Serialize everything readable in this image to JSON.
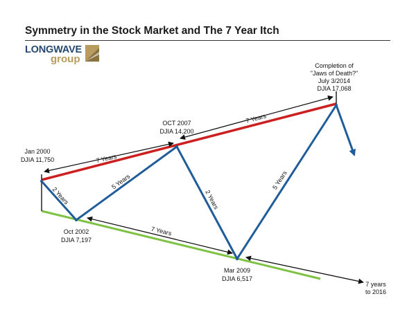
{
  "title": "Symmetry in the Stock Market and The 7 Year Itch",
  "logo": {
    "top": "LONGWAVE",
    "bottom": "group"
  },
  "chart_data": {
    "type": "line",
    "title": "Symmetry in the Stock Market and The 7 Year Itch",
    "series": [
      {
        "points": [
          {
            "date": "Jan 2000",
            "value": 11750
          },
          {
            "date": "Oct 2002",
            "value": 7197
          },
          {
            "date": "Oct 2007",
            "value": 14200
          },
          {
            "date": "Mar 2009",
            "value": 6517
          },
          {
            "date": "July 3/2014",
            "value": 17068
          }
        ],
        "projection": "down after July 3/2014",
        "color": "#1f5c99"
      }
    ],
    "trendlines": [
      {
        "type": "upper",
        "color": "#cc1f1f"
      },
      {
        "type": "lower",
        "color": "#7dc242"
      }
    ],
    "annotations": {
      "jan2000": [
        "Jan 2000",
        "DJIA 11,750"
      ],
      "oct2002": [
        "Oct 2002",
        "DJIA 7,197"
      ],
      "oct2007": [
        "OCT 2007",
        "DJIA 14,200"
      ],
      "mar2009": [
        "Mar 2009",
        "DJIA 6,517"
      ],
      "jul2014": [
        "Completion of",
        "\"Jaws of Death?\"",
        "July 3/2014",
        "DJIA 17,068"
      ],
      "future": [
        "7 years",
        "to 2016"
      ]
    },
    "intervals": {
      "top_left": "7 Years",
      "top_right": "7 Years",
      "bottom_mid": "7 Years",
      "seg_2000_2002": "2 Years",
      "seg_2002_2007": "5 Years",
      "seg_2007_2009": "2 Years",
      "seg_2009_2014": "5 Years"
    },
    "colors": {
      "main": "#1f5c99",
      "upper": "#cc1f1f",
      "lower": "#7dc242",
      "arrow": "#111111"
    }
  }
}
